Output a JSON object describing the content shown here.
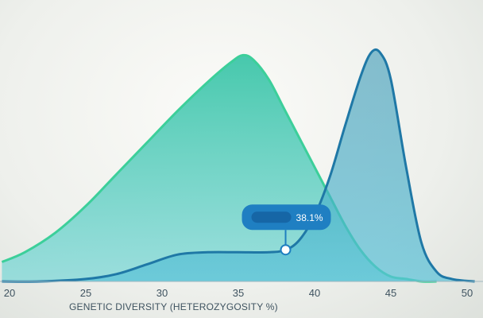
{
  "chart_data": {
    "type": "area",
    "xlabel": "GENETIC DIVERSITY (HETEROZYGOSITY %)",
    "ylabel": "",
    "xlim": [
      19.5,
      50.5
    ],
    "ylim": [
      0,
      1
    ],
    "x_ticks": [
      "20",
      "25",
      "30",
      "35",
      "40",
      "45",
      "50"
    ],
    "grid": false,
    "series": [
      {
        "color": "#3ccf9a",
        "x": [
          19.5,
          21,
          23,
          25,
          27,
          29,
          31,
          33,
          34.5,
          35.3,
          36,
          37,
          38,
          39,
          40,
          41,
          42,
          43,
          44,
          45,
          46,
          47,
          48
        ],
        "y": [
          0.08,
          0.12,
          0.2,
          0.31,
          0.44,
          0.57,
          0.7,
          0.82,
          0.9,
          0.93,
          0.91,
          0.83,
          0.71,
          0.59,
          0.47,
          0.35,
          0.23,
          0.13,
          0.06,
          0.02,
          0.01,
          0.0,
          0.0
        ]
      },
      {
        "color": "#1f78a6",
        "x": [
          19.5,
          22,
          25,
          27,
          29,
          31,
          33,
          35,
          37,
          38.1,
          39,
          40,
          41,
          42,
          43,
          43.7,
          44.3,
          45,
          46,
          47,
          48,
          49,
          50.5
        ],
        "y": [
          0.0,
          0.0,
          0.01,
          0.03,
          0.07,
          0.11,
          0.12,
          0.12,
          0.12,
          0.13,
          0.17,
          0.27,
          0.43,
          0.64,
          0.84,
          0.94,
          0.94,
          0.83,
          0.47,
          0.16,
          0.04,
          0.01,
          0.0
        ]
      }
    ],
    "annotations": [
      {
        "x": 38.1,
        "y": 0.13,
        "label": "38.1%"
      }
    ]
  }
}
